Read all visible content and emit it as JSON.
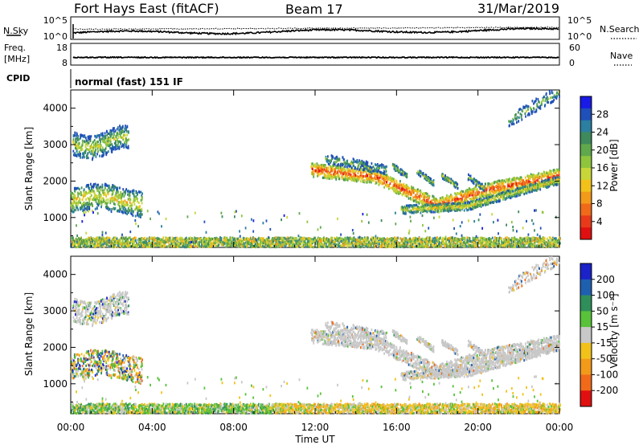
{
  "header": {
    "site": "Fort Hays East (fitACF)",
    "beam": "Beam 17",
    "date": "31/Mar/2019"
  },
  "top_panels": {
    "nsky_label": "N.Sky",
    "nsky_ticks": [
      "10^5",
      "10^0"
    ],
    "nsearch_label": "N.Search",
    "nsearch_ticks": [
      "10^5",
      "10^0"
    ],
    "freq_label": "Freq.",
    "freq_unit": "[MHz]",
    "freq_ticks": [
      "18",
      "8"
    ],
    "nave_label": "Nave",
    "nave_ticks": [
      "60",
      "0"
    ],
    "cpid_label": "CPID",
    "cpid_text": "normal (fast) 151 IF"
  },
  "chart_data": [
    {
      "type": "heatmap",
      "name": "power",
      "ylabel": "Slant Range [km]",
      "yticks": [
        "4000",
        "3000",
        "2000",
        "1000"
      ],
      "ylim": [
        180,
        4500
      ],
      "xlim": [
        0,
        24
      ],
      "colorbar": {
        "label": "Power [dB]",
        "ticks": [
          "28",
          "24",
          "20",
          "16",
          "12",
          "8",
          "4"
        ],
        "colors": [
          "#1a1ae6",
          "#1f4fb8",
          "#2b7fa0",
          "#3e8a5c",
          "#5fa84c",
          "#8fc53c",
          "#c8d63a",
          "#f2c21a",
          "#f39a1a",
          "#f06a1a",
          "#e83a1a",
          "#e01010"
        ]
      },
      "echo_regions": [
        {
          "t0": 0.1,
          "t1": 2.8,
          "r0": 2650,
          "r1": 3550
        },
        {
          "t0": 0.0,
          "t1": 3.5,
          "r0": 1050,
          "r1": 1900
        },
        {
          "t0": 11.8,
          "t1": 24.0,
          "r0": 1150,
          "r1": 2700
        },
        {
          "t0": 21.5,
          "t1": 24.0,
          "r0": 3500,
          "r1": 4500
        },
        {
          "t0": 0.0,
          "t1": 24.0,
          "r0": 180,
          "r1": 350
        }
      ]
    },
    {
      "type": "heatmap",
      "name": "velocity",
      "ylabel": "Slant Range [km]",
      "xlabel": "Time UT",
      "xticks": [
        "00:00",
        "04:00",
        "08:00",
        "12:00",
        "16:00",
        "20:00",
        "00:00"
      ],
      "yticks": [
        "4000",
        "3000",
        "2000",
        "1000"
      ],
      "ylim": [
        180,
        4500
      ],
      "xlim": [
        0,
        24
      ],
      "colorbar": {
        "label": "Velocity [m s⁻¹]",
        "ticks": [
          "200",
          "100",
          "50",
          "15",
          "-15",
          "-50",
          "-100",
          "-200"
        ],
        "colors": [
          "#1a22c8",
          "#1f5fb0",
          "#2f8f5a",
          "#58c23a",
          "#c8c8c8",
          "#f2c21a",
          "#f39a1a",
          "#f06a1a",
          "#e01010"
        ]
      }
    }
  ]
}
